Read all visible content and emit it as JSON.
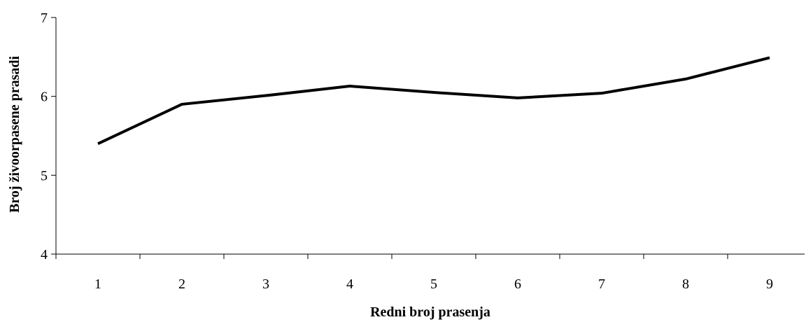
{
  "chart_data": {
    "type": "line",
    "x": [
      1,
      2,
      3,
      4,
      5,
      6,
      7,
      8,
      9
    ],
    "x_tick_labels": [
      "1",
      "2",
      "3",
      "4",
      "5",
      "6",
      "7",
      "8",
      "9"
    ],
    "series": [
      {
        "values": [
          5.4,
          5.9,
          6.01,
          6.13,
          6.05,
          5.98,
          6.04,
          6.22,
          6.49
        ],
        "color": "#000000"
      }
    ],
    "xlabel": "Redni broj prasenja",
    "ylabel": "Broj živoorpasene prasadi",
    "ylim": [
      4,
      7
    ],
    "y_ticks": [
      4,
      5,
      6,
      7
    ],
    "y_tick_labels": [
      "4",
      "5",
      "6",
      "7"
    ],
    "grid": false,
    "legend": "none"
  }
}
